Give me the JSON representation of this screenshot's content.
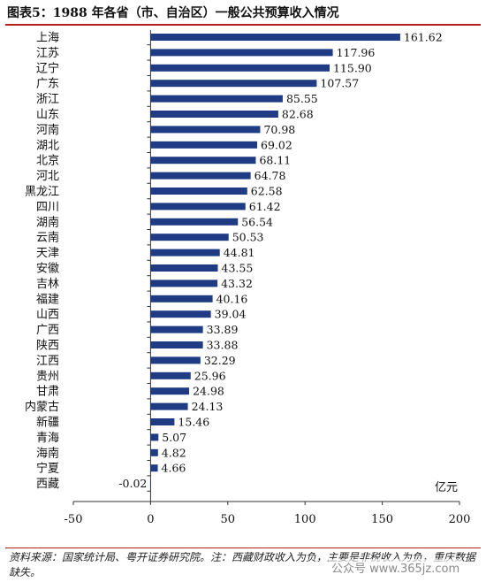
{
  "page": {
    "title": "图表5：1988 年各省（市、自治区）一般公共预算收入情况",
    "footer": "资料来源：国家统计局、粤开证券研究院。注：西藏财政收入为负，主要是非税收入为负，重庆数据缺失。",
    "watermark": "公众号 www.365jz.com"
  },
  "colors": {
    "bar": "#1f3b84",
    "rule": "#b41e1e"
  },
  "chart_data": {
    "type": "bar",
    "orientation": "horizontal",
    "unit_label": "亿元",
    "categories": [
      "上海",
      "江苏",
      "辽宁",
      "广东",
      "浙江",
      "山东",
      "河南",
      "湖北",
      "北京",
      "河北",
      "黑龙江",
      "四川",
      "湖南",
      "云南",
      "天津",
      "安徽",
      "吉林",
      "福建",
      "山西",
      "广西",
      "陕西",
      "江西",
      "贵州",
      "甘肃",
      "内蒙古",
      "新疆",
      "青海",
      "海南",
      "宁夏",
      "西藏"
    ],
    "values": [
      161.62,
      117.96,
      115.9,
      107.57,
      85.55,
      82.68,
      70.98,
      69.02,
      68.11,
      64.78,
      62.58,
      61.42,
      56.54,
      50.53,
      44.81,
      43.55,
      43.32,
      40.16,
      39.04,
      33.89,
      33.88,
      32.29,
      25.96,
      24.98,
      24.13,
      15.46,
      5.07,
      4.82,
      4.66,
      -0.02
    ],
    "value_labels": [
      "161.62",
      "117.96",
      "115.90",
      "107.57",
      "85.55",
      "82.68",
      "70.98",
      "69.02",
      "68.11",
      "64.78",
      "62.58",
      "61.42",
      "56.54",
      "50.53",
      "44.81",
      "43.55",
      "43.32",
      "40.16",
      "39.04",
      "33.89",
      "33.88",
      "32.29",
      "25.96",
      "24.98",
      "24.13",
      "15.46",
      "5.07",
      "4.82",
      "4.66",
      "-0.02"
    ],
    "xlim": [
      -50,
      200
    ],
    "xticks": [
      -50,
      0,
      50,
      100,
      150,
      200
    ],
    "xtick_labels": [
      "-50",
      "0",
      "50",
      "100",
      "150",
      "200"
    ],
    "grid": false,
    "legend": "none"
  }
}
